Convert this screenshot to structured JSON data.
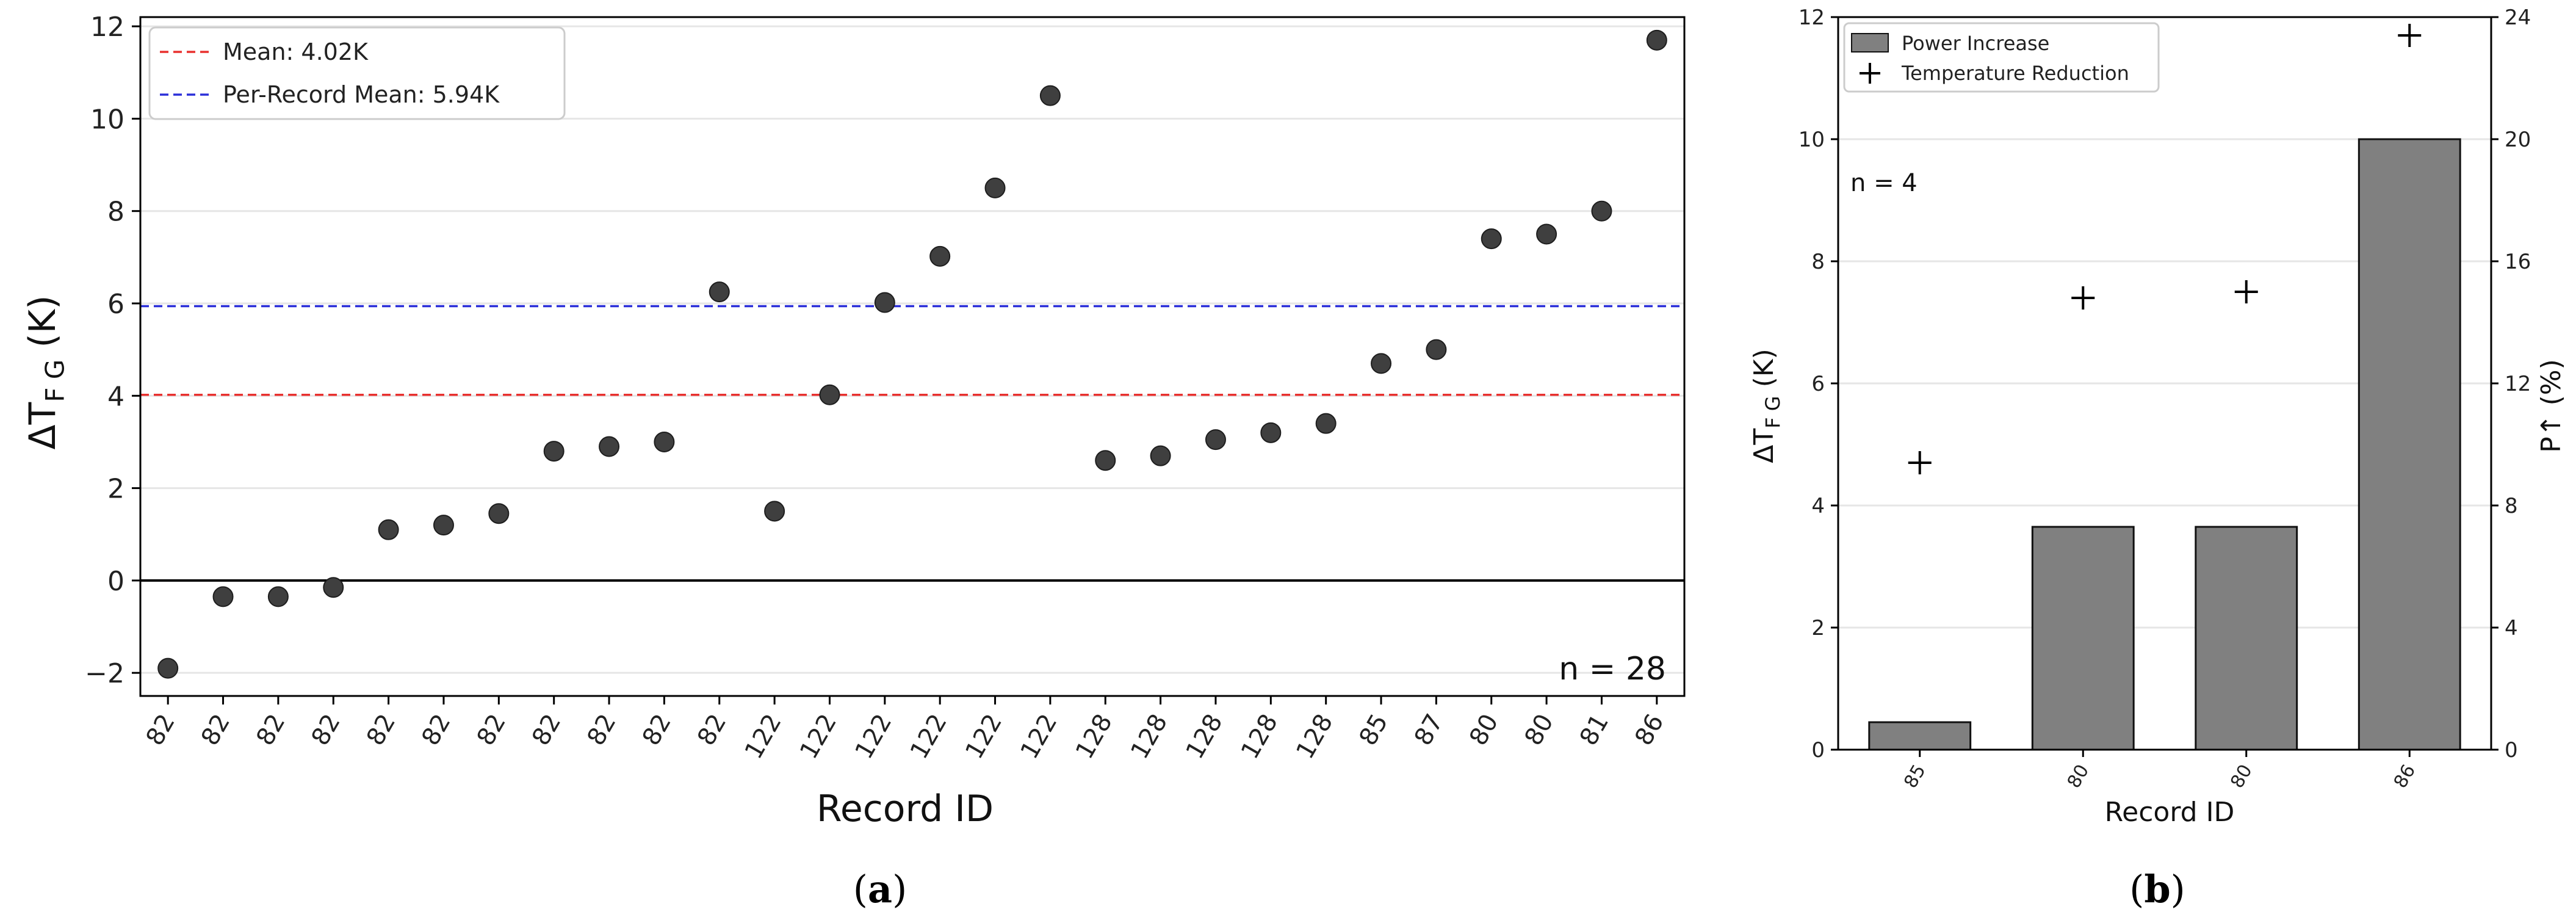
{
  "chart_data": [
    {
      "type": "scatter",
      "panel_label": "(a)",
      "panel_letter": "a",
      "xlabel": "Record ID",
      "ylabel": "ΔT",
      "ylabel_sub": "F_G",
      "ylabel_unit": " (K)",
      "ylim": [
        -2.5,
        12.2
      ],
      "yticks": [
        -2,
        0,
        2,
        4,
        6,
        8,
        10,
        12
      ],
      "ytick_labels": [
        "−2",
        "0",
        "2",
        "4",
        "6",
        "8",
        "10",
        "12"
      ],
      "grid": "horizontal",
      "annotation": "n = 28",
      "categories": [
        "82",
        "82",
        "82",
        "82",
        "82",
        "82",
        "82",
        "82",
        "82",
        "82",
        "82",
        "122",
        "122",
        "122",
        "122",
        "122",
        "122",
        "128",
        "128",
        "128",
        "128",
        "128",
        "85",
        "87",
        "80",
        "80",
        "81",
        "86"
      ],
      "values": [
        -1.9,
        -0.35,
        -0.35,
        -0.15,
        1.1,
        1.2,
        1.45,
        2.8,
        2.9,
        3.0,
        6.25,
        1.5,
        4.02,
        6.02,
        7.02,
        8.5,
        10.5,
        2.6,
        2.7,
        3.05,
        3.2,
        3.4,
        4.7,
        5.0,
        7.4,
        7.5,
        8.0,
        11.7
      ],
      "reference_lines": [
        {
          "label": "Mean: 4.02K",
          "value": 4.02,
          "color": "#e8302f",
          "style": "dashed"
        },
        {
          "label": "Per-Record Mean: 5.94K",
          "value": 5.94,
          "color": "#2b2fd9",
          "style": "dashed"
        },
        {
          "value": 0,
          "color": "#000000",
          "style": "solid"
        }
      ],
      "legend_position": "top-left",
      "colors": {
        "points": "#3f3f3f"
      }
    },
    {
      "type": "bar",
      "panel_label": "(b)",
      "panel_letter": "b",
      "xlabel": "Record ID",
      "ylabel": "ΔT",
      "ylabel_sub": "F_G",
      "ylabel_unit": " (K)",
      "y2label": "P↑ (%)",
      "categories": [
        "85",
        "80",
        "80",
        "86"
      ],
      "ylim": [
        0,
        12
      ],
      "yticks": [
        0,
        2,
        4,
        6,
        8,
        10,
        12
      ],
      "y2lim": [
        0,
        24
      ],
      "y2ticks": [
        0,
        4,
        8,
        12,
        16,
        20,
        24
      ],
      "grid": "horizontal",
      "annotation": "n = 4",
      "series": [
        {
          "name": "Power Increase",
          "kind": "bar",
          "axis": "left",
          "values": [
            0.45,
            3.65,
            3.65,
            10.0
          ],
          "color": "#808080"
        },
        {
          "name": "Temperature Reduction",
          "kind": "marker",
          "axis": "left",
          "values": [
            4.7,
            7.4,
            7.5,
            11.7
          ],
          "color": "#000000"
        }
      ],
      "legend_position": "top-left"
    }
  ]
}
